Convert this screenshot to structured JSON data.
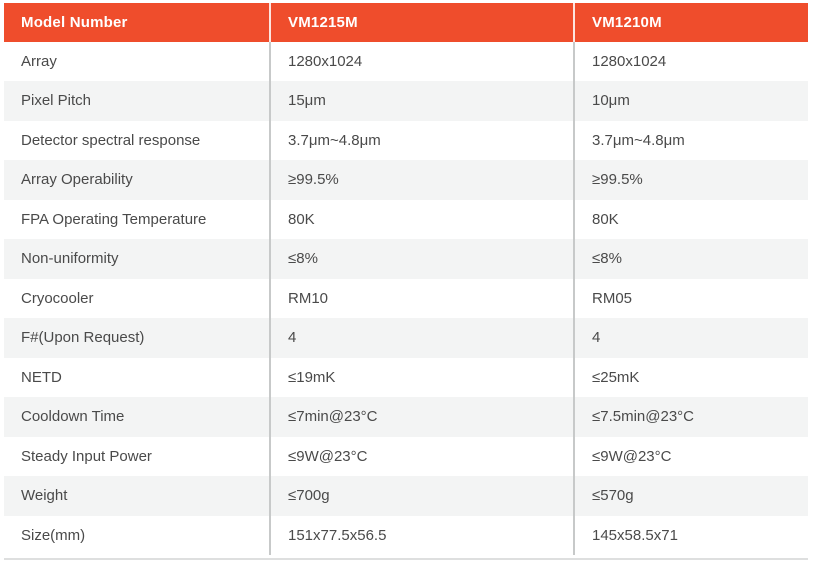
{
  "spec_table": {
    "header": {
      "columns": [
        "Model Number",
        "VM1215M",
        "VM1210M"
      ]
    },
    "rows": [
      {
        "label": "Array",
        "values": [
          "1280x1024",
          "1280x1024"
        ]
      },
      {
        "label": "Pixel Pitch",
        "values": [
          "15μm",
          "10μm"
        ]
      },
      {
        "label": "Detector spectral response",
        "values": [
          "3.7μm~4.8μm",
          "3.7μm~4.8μm"
        ]
      },
      {
        "label": "Array Operability",
        "values": [
          "≥99.5%",
          "≥99.5%"
        ]
      },
      {
        "label": "FPA Operating Temperature",
        "values": [
          "80K",
          "80K"
        ]
      },
      {
        "label": "Non-uniformity",
        "values": [
          "≤8%",
          "≤8%"
        ]
      },
      {
        "label": "Cryocooler",
        "values": [
          "RM10",
          "RM05"
        ]
      },
      {
        "label": "F#(Upon Request)",
        "values": [
          "4",
          "4"
        ]
      },
      {
        "label": "NETD",
        "values": [
          "≤19mK",
          "≤25mK"
        ]
      },
      {
        "label": "Cooldown Time",
        "values": [
          "≤7min@23°C",
          "≤7.5min@23°C"
        ]
      },
      {
        "label": "Steady Input Power",
        "values": [
          "≤9W@23°C",
          "≤9W@23°C"
        ]
      },
      {
        "label": "Weight",
        "values": [
          "≤700g",
          "≤570g"
        ]
      },
      {
        "label": "Size(mm)",
        "values": [
          "151x77.5x56.5",
          "145x58.5x71"
        ]
      }
    ]
  },
  "colors": {
    "header_bg": "#EF4D2C",
    "header_text": "#FFFFFF",
    "body_text": "#4A4A4A",
    "row_alt_bg": "#F3F4F4",
    "divider": "#C7C9C9",
    "bottom_rule": "#DEDFDF"
  }
}
